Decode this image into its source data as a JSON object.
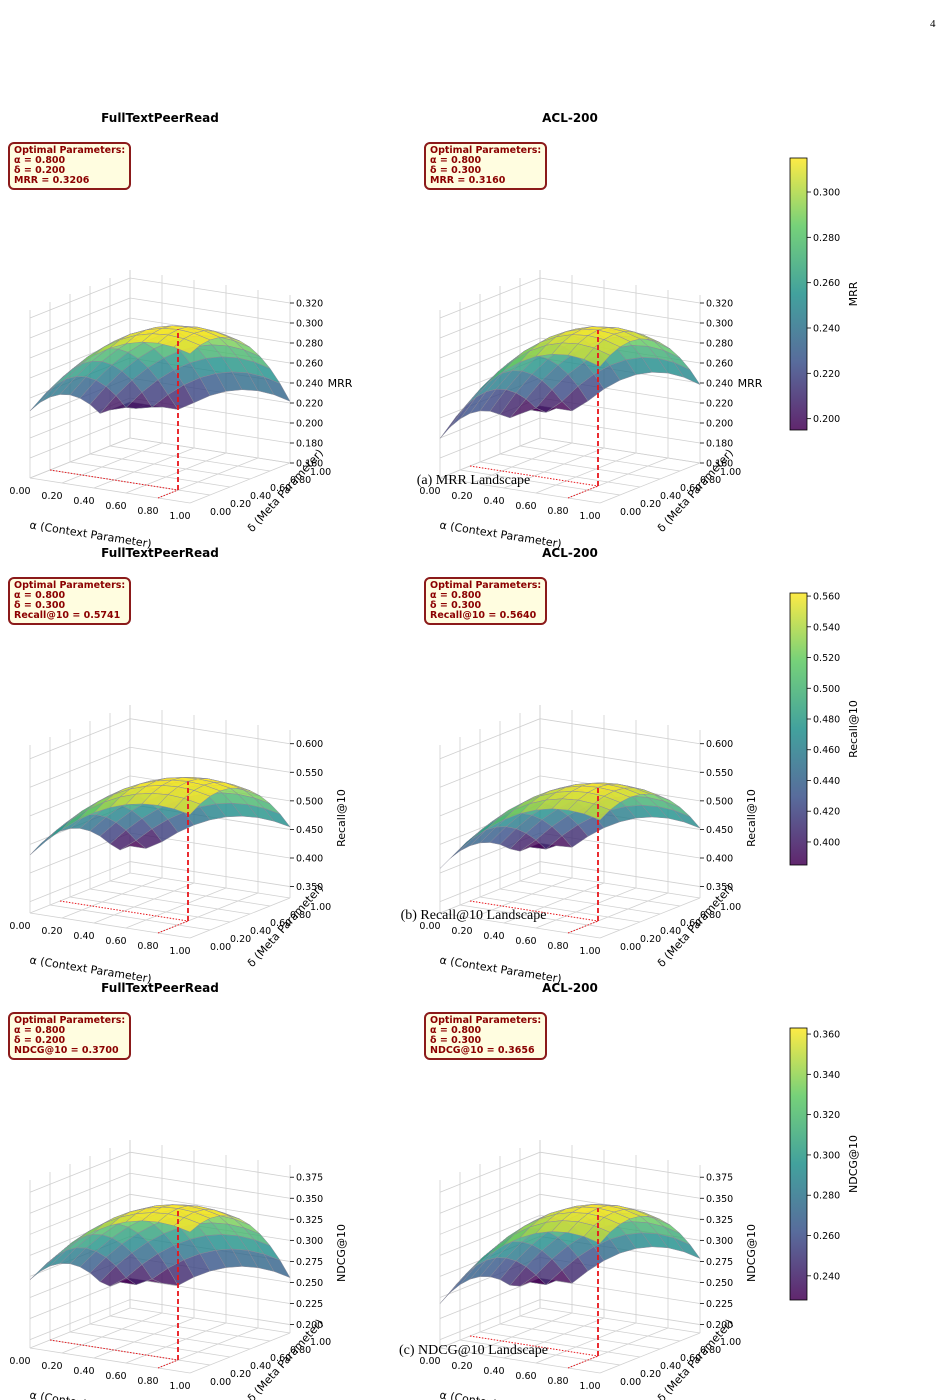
{
  "page_number": "4",
  "axis_labels": {
    "x": "α (Context Parameter)",
    "y": "δ (Meta Parameter)"
  },
  "x_ticks": [
    "0.00",
    "0.20",
    "0.40",
    "0.60",
    "0.80",
    "1.00"
  ],
  "y_ticks": [
    "0.00",
    "0.20",
    "0.40",
    "0.60",
    "0.80",
    "1.00"
  ],
  "colormap": [
    "#440154",
    "#3b528b",
    "#21918c",
    "#5ec962",
    "#fde725"
  ],
  "chart_data": [
    {
      "id": "mrr",
      "type": "surface3d",
      "caption": "(a) MRR Landscape",
      "zlabel": "MRR",
      "z_ticks": [
        "0.160",
        "0.180",
        "0.200",
        "0.220",
        "0.240",
        "0.260",
        "0.280",
        "0.300",
        "0.320"
      ],
      "zlim": [
        0.16,
        0.32
      ],
      "colorbar": {
        "label": "MRR",
        "ticks": [
          "0.200",
          "0.220",
          "0.240",
          "0.260",
          "0.280",
          "0.300"
        ],
        "range": [
          0.195,
          0.315
        ]
      },
      "panels": [
        {
          "title": "FullTextPeerRead",
          "optimal": {
            "heading": "Optimal Parameters:",
            "alpha": "α = 0.800",
            "delta": "δ = 0.200",
            "metric": "MRR = 0.3206"
          },
          "opt_alpha": 0.8,
          "opt_delta": 0.2,
          "peak": 0.3206,
          "edge_low": 0.2,
          "edge_a0": 0.235
        },
        {
          "title": "ACL-200",
          "optimal": {
            "heading": "Optimal Parameters:",
            "alpha": "α = 0.800",
            "delta": "δ = 0.300",
            "metric": "MRR = 0.3160"
          },
          "opt_alpha": 0.8,
          "opt_delta": 0.3,
          "peak": 0.316,
          "edge_low": 0.196,
          "edge_a0": 0.215
        }
      ]
    },
    {
      "id": "recall",
      "type": "surface3d",
      "caption": "(b) Recall@10 Landscape",
      "zlabel": "Recall@10",
      "z_ticks": [
        "0.350",
        "0.400",
        "0.450",
        "0.500",
        "0.550",
        "0.600"
      ],
      "zlim": [
        0.33,
        0.61
      ],
      "colorbar": {
        "label": "Recall@10",
        "ticks": [
          "0.400",
          "0.420",
          "0.440",
          "0.460",
          "0.480",
          "0.500",
          "0.520",
          "0.540",
          "0.560"
        ],
        "range": [
          0.385,
          0.562
        ]
      },
      "panels": [
        {
          "title": "FullTextPeerRead",
          "optimal": {
            "heading": "Optimal Parameters:",
            "alpha": "α = 0.800",
            "delta": "δ = 0.300",
            "metric": "Recall@10 = 0.5741"
          },
          "opt_alpha": 0.8,
          "opt_delta": 0.3,
          "peak": 0.5741,
          "edge_low": 0.385,
          "edge_a0": 0.455
        },
        {
          "title": "ACL-200",
          "optimal": {
            "heading": "Optimal Parameters:",
            "alpha": "α = 0.800",
            "delta": "δ = 0.300",
            "metric": "Recall@10 = 0.5640"
          },
          "opt_alpha": 0.8,
          "opt_delta": 0.3,
          "peak": 0.564,
          "edge_low": 0.39,
          "edge_a0": 0.43
        }
      ]
    },
    {
      "id": "ndcg",
      "type": "surface3d",
      "caption": "(c) NDCG@10 Landscape",
      "zlabel": "NDCG@10",
      "z_ticks": [
        "0.200",
        "0.225",
        "0.250",
        "0.275",
        "0.300",
        "0.325",
        "0.350",
        "0.375"
      ],
      "zlim": [
        0.19,
        0.38
      ],
      "colorbar": {
        "label": "NDCG@10",
        "ticks": [
          "0.240",
          "0.260",
          "0.280",
          "0.300",
          "0.320",
          "0.340",
          "0.360"
        ],
        "range": [
          0.228,
          0.363
        ]
      },
      "panels": [
        {
          "title": "FullTextPeerRead",
          "optimal": {
            "heading": "Optimal Parameters:",
            "alpha": "α = 0.800",
            "delta": "δ = 0.200",
            "metric": "NDCG@10 = 0.3700"
          },
          "opt_alpha": 0.8,
          "opt_delta": 0.2,
          "peak": 0.37,
          "edge_low": 0.23,
          "edge_a0": 0.28
        },
        {
          "title": "ACL-200",
          "optimal": {
            "heading": "Optimal Parameters:",
            "alpha": "α = 0.800",
            "delta": "δ = 0.300",
            "metric": "NDCG@10 = 0.3656"
          },
          "opt_alpha": 0.8,
          "opt_delta": 0.3,
          "peak": 0.3656,
          "edge_low": 0.23,
          "edge_a0": 0.26
        }
      ]
    }
  ]
}
